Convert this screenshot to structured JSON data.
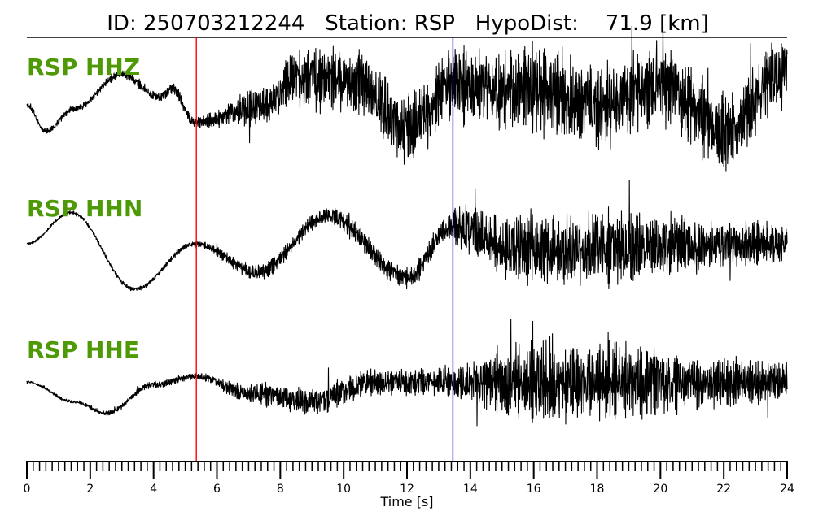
{
  "figure": {
    "title": "ID: 250703212244   Station: RSP   HypoDist:    71.9 [km]"
  },
  "colors": {
    "trace": "#000000",
    "label": "#4e9a06",
    "p_pick": "#ff0000",
    "s_pick": "#0000cc",
    "axis": "#000000"
  },
  "chart_data": {
    "type": "line",
    "title": "ID: 250703212244   Station: RSP   HypoDist:    71.9 [km]",
    "xlabel": "Time [s]",
    "xlim": [
      0,
      24
    ],
    "xticks": [
      0,
      2,
      4,
      6,
      8,
      10,
      12,
      14,
      16,
      18,
      20,
      22,
      24
    ],
    "xtick_labels": [
      "0",
      "2",
      "4",
      "6",
      "8",
      "10",
      "12",
      "14",
      "16",
      "18",
      "20",
      "22",
      "24"
    ],
    "minor_tick_step": 0.2,
    "picks": [
      {
        "phase": "P",
        "time": 5.35,
        "color": "#ff0000"
      },
      {
        "phase": "S",
        "time": 13.45,
        "color": "#0000cc"
      }
    ],
    "series": [
      {
        "name": "RSP HHZ",
        "background": [
          {
            "t": 0.0,
            "v": 0.0
          },
          {
            "t": 0.6,
            "v": -0.45
          },
          {
            "t": 1.5,
            "v": -0.05
          },
          {
            "t": 3.0,
            "v": 0.55
          },
          {
            "t": 4.2,
            "v": 0.15
          },
          {
            "t": 4.6,
            "v": 0.3
          },
          {
            "t": 5.3,
            "v": -0.3
          },
          {
            "t": 7.5,
            "v": 0.0
          },
          {
            "t": 8.5,
            "v": 0.5
          },
          {
            "t": 10.5,
            "v": 0.4
          },
          {
            "t": 12.0,
            "v": -0.4
          },
          {
            "t": 13.5,
            "v": 0.35
          },
          {
            "t": 16.0,
            "v": 0.3
          },
          {
            "t": 18.0,
            "v": 0.0
          },
          {
            "t": 20.0,
            "v": 0.35
          },
          {
            "t": 22.0,
            "v": -0.45
          },
          {
            "t": 24.0,
            "v": 0.6
          }
        ],
        "noise": [
          {
            "t": 0.0,
            "a": 0.06
          },
          {
            "t": 5.3,
            "a": 0.12
          },
          {
            "t": 7.4,
            "a": 0.4
          },
          {
            "t": 9.5,
            "a": 0.7
          },
          {
            "t": 13.4,
            "a": 0.8
          },
          {
            "t": 16.0,
            "a": 1.0
          },
          {
            "t": 19.0,
            "a": 0.9
          },
          {
            "t": 24.0,
            "a": 0.8
          }
        ]
      },
      {
        "name": "RSP HHN",
        "background": [
          {
            "t": 0.0,
            "v": 0.0
          },
          {
            "t": 1.4,
            "v": 0.55
          },
          {
            "t": 3.4,
            "v": -0.8
          },
          {
            "t": 5.3,
            "v": 0.0
          },
          {
            "t": 7.3,
            "v": -0.5
          },
          {
            "t": 9.5,
            "v": 0.5
          },
          {
            "t": 12.0,
            "v": -0.6
          },
          {
            "t": 13.4,
            "v": 0.3
          },
          {
            "t": 15.5,
            "v": -0.1
          },
          {
            "t": 24.0,
            "v": 0.0
          }
        ],
        "noise": [
          {
            "t": 0.0,
            "a": 0.03
          },
          {
            "t": 5.3,
            "a": 0.06
          },
          {
            "t": 7.5,
            "a": 0.18
          },
          {
            "t": 13.4,
            "a": 0.28
          },
          {
            "t": 13.6,
            "a": 0.6
          },
          {
            "t": 16.0,
            "a": 0.8
          },
          {
            "t": 18.0,
            "a": 0.8
          },
          {
            "t": 24.0,
            "a": 0.45
          }
        ]
      },
      {
        "name": "RSP HHE",
        "background": [
          {
            "t": 0.0,
            "v": 0.0
          },
          {
            "t": 1.5,
            "v": -0.35
          },
          {
            "t": 2.5,
            "v": -0.55
          },
          {
            "t": 4.0,
            "v": -0.05
          },
          {
            "t": 5.3,
            "v": 0.1
          },
          {
            "t": 7.0,
            "v": -0.2
          },
          {
            "t": 9.0,
            "v": -0.35
          },
          {
            "t": 11.0,
            "v": 0.0
          },
          {
            "t": 13.4,
            "v": 0.0
          },
          {
            "t": 24.0,
            "v": 0.0
          }
        ],
        "noise": [
          {
            "t": 0.0,
            "a": 0.03
          },
          {
            "t": 5.3,
            "a": 0.08
          },
          {
            "t": 8.0,
            "a": 0.3
          },
          {
            "t": 13.4,
            "a": 0.3
          },
          {
            "t": 13.6,
            "a": 0.45
          },
          {
            "t": 16.0,
            "a": 0.9
          },
          {
            "t": 18.0,
            "a": 0.8
          },
          {
            "t": 24.0,
            "a": 0.45
          }
        ]
      }
    ]
  }
}
